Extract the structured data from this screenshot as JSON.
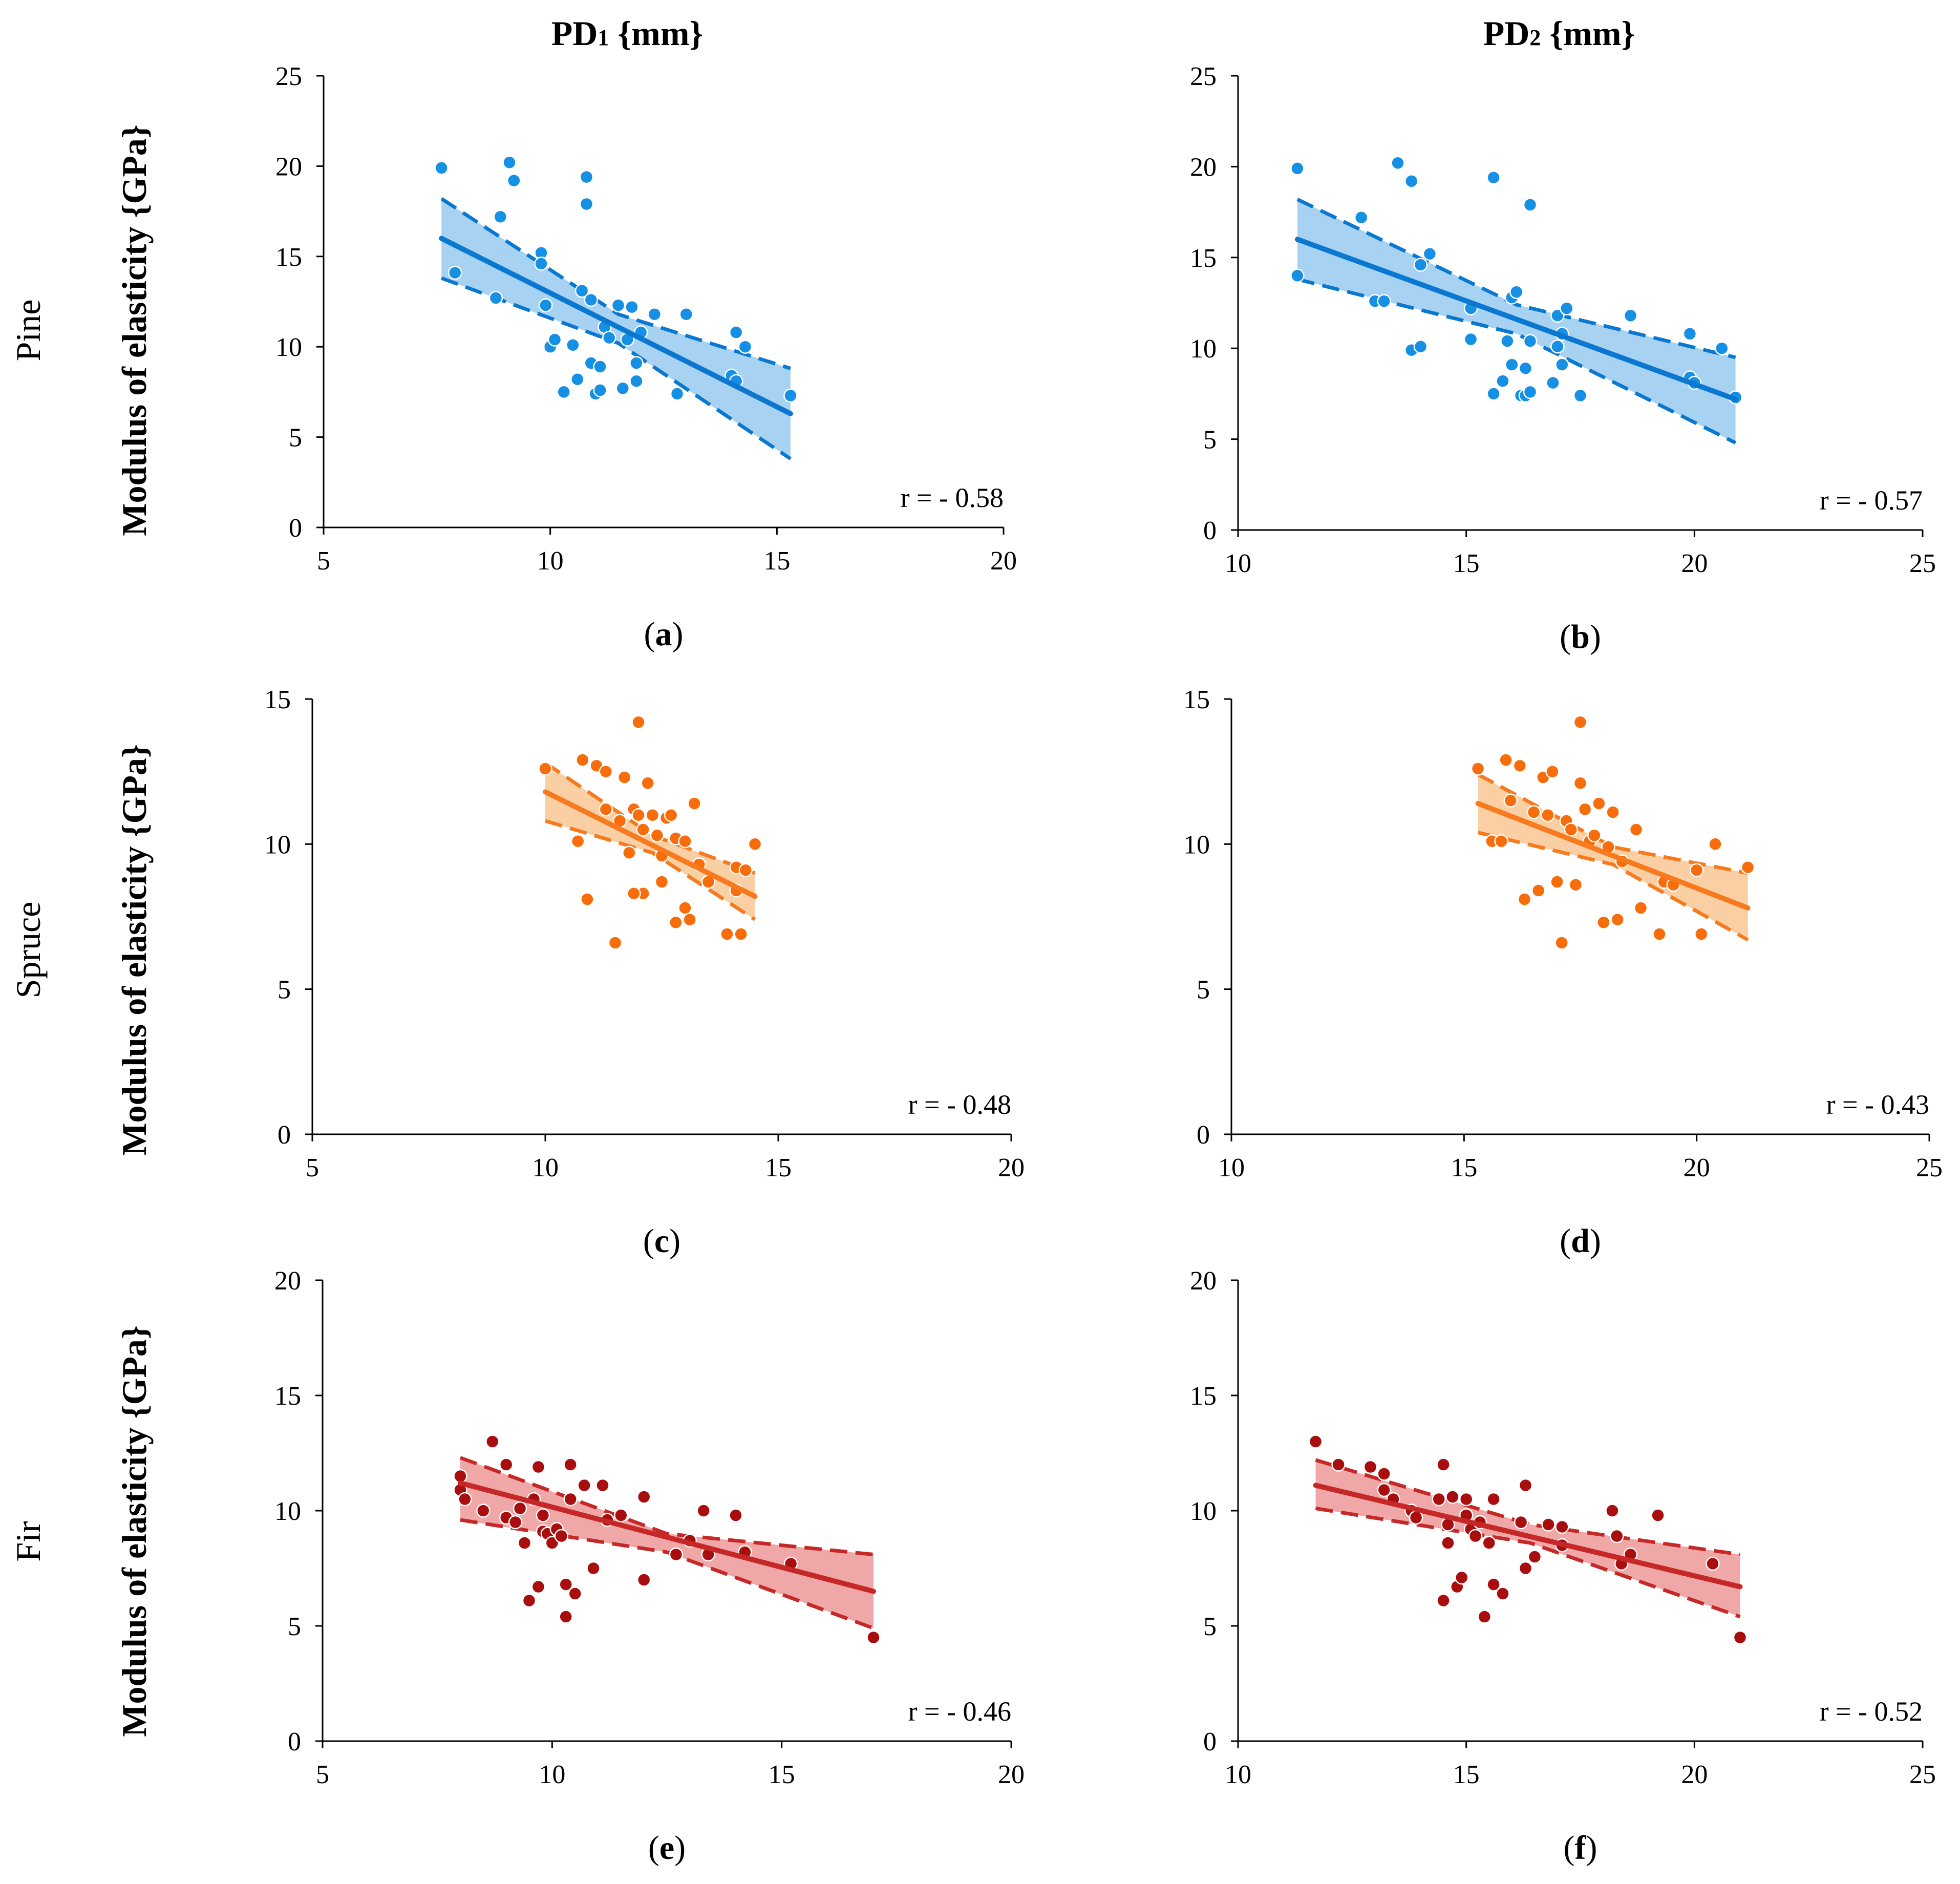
{
  "column_titles": [
    {
      "prefix": "PD",
      "sub": "1",
      "unit": " {mm}"
    },
    {
      "prefix": "PD",
      "sub": "2",
      "unit": " {mm}"
    }
  ],
  "row_labels": [
    "Pine",
    "Spruce",
    "Fir"
  ],
  "ylabel": "Modulus of elasticity {GPa}",
  "colors": {
    "pine": {
      "line": "#0a78d0",
      "point": "#1690e4",
      "fill": "#a8d2f2"
    },
    "spruce": {
      "line": "#f77a1f",
      "point": "#f76d0c",
      "fill": "#fbcfa4"
    },
    "fir": {
      "line": "#c62828",
      "point": "#a80e0e",
      "fill": "#efa7a7"
    }
  },
  "chart_data": [
    {
      "id": "a",
      "type": "scatter",
      "species": "pine",
      "letter": "a",
      "r_text": "r = - 0.58",
      "xlim": [
        5,
        20
      ],
      "ylim": [
        0,
        25
      ],
      "xticks": [
        5,
        10,
        15,
        20
      ],
      "yticks": [
        0,
        5,
        10,
        15,
        20,
        25
      ],
      "fit": {
        "x": [
          7.6,
          15.3
        ],
        "y": [
          16.0,
          6.3
        ]
      },
      "band_upper": {
        "x": [
          7.6,
          11.5,
          15.3
        ],
        "y": [
          18.2,
          11.8,
          8.8
        ]
      },
      "band_lower": {
        "x": [
          7.6,
          11.5,
          15.3
        ],
        "y": [
          13.8,
          10.2,
          3.8
        ]
      },
      "points": [
        [
          7.6,
          19.9
        ],
        [
          7.9,
          14.1
        ],
        [
          8.8,
          12.7
        ],
        [
          8.9,
          17.2
        ],
        [
          9.1,
          20.2
        ],
        [
          9.2,
          19.2
        ],
        [
          9.8,
          15.2
        ],
        [
          9.8,
          14.6
        ],
        [
          9.9,
          12.3
        ],
        [
          10.0,
          10.0
        ],
        [
          10.1,
          10.4
        ],
        [
          10.3,
          7.5
        ],
        [
          10.5,
          10.1
        ],
        [
          10.6,
          8.2
        ],
        [
          10.7,
          13.1
        ],
        [
          10.8,
          19.4
        ],
        [
          10.8,
          17.9
        ],
        [
          10.9,
          12.6
        ],
        [
          10.9,
          9.1
        ],
        [
          11.0,
          7.4
        ],
        [
          11.1,
          7.6
        ],
        [
          11.1,
          8.9
        ],
        [
          11.2,
          11.1
        ],
        [
          11.3,
          10.5
        ],
        [
          11.5,
          12.3
        ],
        [
          11.6,
          7.7
        ],
        [
          11.7,
          10.4
        ],
        [
          11.8,
          12.2
        ],
        [
          11.9,
          9.1
        ],
        [
          11.9,
          8.1
        ],
        [
          12.0,
          10.8
        ],
        [
          12.3,
          11.8
        ],
        [
          12.8,
          7.4
        ],
        [
          13.0,
          11.8
        ],
        [
          14.0,
          8.4
        ],
        [
          14.1,
          10.8
        ],
        [
          14.1,
          8.1
        ],
        [
          14.3,
          10.0
        ],
        [
          15.3,
          7.3
        ]
      ]
    },
    {
      "id": "b",
      "type": "scatter",
      "species": "pine",
      "letter": "b",
      "r_text": "r = - 0.57",
      "xlim": [
        10,
        25
      ],
      "ylim": [
        0,
        25
      ],
      "xticks": [
        10,
        15,
        20,
        25
      ],
      "yticks": [
        0,
        5,
        10,
        15,
        20,
        25
      ],
      "fit": {
        "x": [
          11.3,
          20.9
        ],
        "y": [
          16.0,
          7.2
        ]
      },
      "band_upper": {
        "x": [
          11.3,
          16.1,
          20.9
        ],
        "y": [
          18.2,
          12.4,
          9.5
        ]
      },
      "band_lower": {
        "x": [
          11.3,
          16.1,
          20.9
        ],
        "y": [
          13.8,
          10.8,
          4.8
        ]
      },
      "points": [
        [
          11.3,
          19.9
        ],
        [
          11.3,
          14.0
        ],
        [
          12.7,
          17.2
        ],
        [
          13.0,
          12.6
        ],
        [
          13.2,
          12.6
        ],
        [
          13.5,
          20.2
        ],
        [
          13.8,
          19.2
        ],
        [
          13.8,
          9.9
        ],
        [
          14.0,
          14.6
        ],
        [
          14.0,
          10.1
        ],
        [
          14.2,
          15.2
        ],
        [
          15.1,
          12.2
        ],
        [
          15.1,
          10.5
        ],
        [
          15.6,
          7.5
        ],
        [
          15.6,
          19.4
        ],
        [
          15.8,
          8.2
        ],
        [
          15.9,
          10.4
        ],
        [
          16.0,
          12.8
        ],
        [
          16.0,
          9.1
        ],
        [
          16.1,
          13.1
        ],
        [
          16.2,
          7.4
        ],
        [
          16.3,
          7.4
        ],
        [
          16.3,
          8.9
        ],
        [
          16.4,
          17.9
        ],
        [
          16.4,
          10.4
        ],
        [
          16.4,
          7.6
        ],
        [
          16.9,
          8.1
        ],
        [
          17.0,
          11.8
        ],
        [
          17.0,
          10.1
        ],
        [
          17.1,
          10.8
        ],
        [
          17.1,
          9.1
        ],
        [
          17.2,
          12.2
        ],
        [
          17.5,
          7.4
        ],
        [
          18.6,
          11.8
        ],
        [
          19.9,
          10.8
        ],
        [
          19.9,
          8.4
        ],
        [
          20.0,
          8.1
        ],
        [
          20.6,
          10.0
        ],
        [
          20.9,
          7.3
        ]
      ]
    },
    {
      "id": "c",
      "type": "scatter",
      "species": "spruce",
      "letter": "c",
      "r_text": "r = - 0.48",
      "xlim": [
        5,
        20
      ],
      "ylim": [
        0,
        15
      ],
      "xticks": [
        5,
        10,
        15,
        20
      ],
      "yticks": [
        0,
        5,
        10,
        15
      ],
      "fit": {
        "x": [
          10.0,
          14.5
        ],
        "y": [
          11.8,
          8.2
        ]
      },
      "band_upper": {
        "x": [
          10.0,
          12.3,
          14.5
        ],
        "y": [
          12.8,
          10.3,
          9.0
        ]
      },
      "band_lower": {
        "x": [
          10.0,
          12.3,
          14.5
        ],
        "y": [
          10.8,
          9.7,
          7.4
        ]
      },
      "points": [
        [
          10.0,
          12.6
        ],
        [
          10.7,
          10.1
        ],
        [
          10.8,
          12.9
        ],
        [
          10.9,
          8.1
        ],
        [
          11.1,
          12.7
        ],
        [
          11.3,
          12.5
        ],
        [
          11.3,
          11.2
        ],
        [
          11.5,
          6.6
        ],
        [
          11.6,
          10.8
        ],
        [
          11.7,
          12.3
        ],
        [
          11.8,
          9.7
        ],
        [
          11.9,
          11.2
        ],
        [
          12.0,
          14.2
        ],
        [
          12.0,
          11.0
        ],
        [
          12.1,
          10.5
        ],
        [
          12.1,
          8.3
        ],
        [
          12.2,
          12.1
        ],
        [
          12.3,
          11.0
        ],
        [
          12.4,
          10.3
        ],
        [
          12.5,
          9.6
        ],
        [
          12.6,
          10.9
        ],
        [
          12.7,
          11.0
        ],
        [
          12.8,
          10.2
        ],
        [
          12.8,
          7.3
        ],
        [
          13.0,
          10.1
        ],
        [
          13.0,
          7.8
        ],
        [
          13.1,
          7.4
        ],
        [
          13.2,
          11.4
        ],
        [
          13.3,
          9.3
        ],
        [
          13.5,
          8.7
        ],
        [
          13.9,
          6.9
        ],
        [
          14.1,
          9.2
        ],
        [
          14.1,
          8.4
        ],
        [
          14.2,
          6.9
        ],
        [
          14.3,
          9.1
        ],
        [
          14.5,
          10.0
        ],
        [
          12.5,
          8.7
        ],
        [
          11.9,
          8.3
        ]
      ]
    },
    {
      "id": "d",
      "type": "scatter",
      "species": "spruce",
      "letter": "d",
      "r_text": "r = - 0.43",
      "xlim": [
        10,
        25
      ],
      "ylim": [
        0,
        15
      ],
      "xticks": [
        10,
        15,
        20,
        25
      ],
      "yticks": [
        0,
        5,
        10,
        15
      ],
      "fit": {
        "x": [
          15.3,
          21.1
        ],
        "y": [
          11.4,
          7.8
        ]
      },
      "band_upper": {
        "x": [
          15.3,
          18.2,
          21.1
        ],
        "y": [
          12.4,
          9.9,
          9.0
        ]
      },
      "band_lower": {
        "x": [
          15.3,
          18.2,
          21.1
        ],
        "y": [
          10.4,
          9.3,
          6.7
        ]
      },
      "points": [
        [
          15.3,
          12.6
        ],
        [
          15.6,
          10.1
        ],
        [
          15.8,
          10.1
        ],
        [
          15.9,
          12.9
        ],
        [
          16.0,
          11.5
        ],
        [
          16.2,
          12.7
        ],
        [
          16.3,
          8.1
        ],
        [
          16.5,
          11.1
        ],
        [
          16.6,
          8.4
        ],
        [
          16.7,
          12.3
        ],
        [
          16.8,
          11.0
        ],
        [
          16.9,
          12.5
        ],
        [
          17.0,
          8.7
        ],
        [
          17.1,
          6.6
        ],
        [
          17.2,
          10.8
        ],
        [
          17.3,
          10.5
        ],
        [
          17.4,
          8.6
        ],
        [
          17.5,
          14.2
        ],
        [
          17.5,
          12.1
        ],
        [
          17.6,
          11.2
        ],
        [
          17.7,
          10.1
        ],
        [
          17.8,
          10.3
        ],
        [
          17.9,
          11.4
        ],
        [
          18.0,
          7.3
        ],
        [
          18.1,
          9.9
        ],
        [
          18.2,
          11.1
        ],
        [
          18.3,
          7.4
        ],
        [
          18.4,
          9.4
        ],
        [
          18.7,
          10.5
        ],
        [
          18.8,
          7.8
        ],
        [
          19.2,
          6.9
        ],
        [
          19.3,
          8.7
        ],
        [
          19.5,
          8.6
        ],
        [
          20.0,
          9.1
        ],
        [
          20.1,
          6.9
        ],
        [
          20.4,
          10.0
        ],
        [
          21.1,
          9.2
        ]
      ]
    },
    {
      "id": "e",
      "type": "scatter",
      "species": "fir",
      "letter": "e",
      "r_text": "r = - 0.46",
      "xlim": [
        5,
        20
      ],
      "ylim": [
        0,
        20
      ],
      "xticks": [
        5,
        10,
        15,
        20
      ],
      "yticks": [
        0,
        5,
        10,
        15,
        20
      ],
      "fit": {
        "x": [
          8.0,
          17.0
        ],
        "y": [
          11.2,
          6.5
        ]
      },
      "band_upper": {
        "x": [
          8.0,
          12.5,
          17.0
        ],
        "y": [
          12.3,
          9.0,
          8.1
        ]
      },
      "band_lower": {
        "x": [
          8.0,
          12.5,
          17.0
        ],
        "y": [
          9.6,
          8.2,
          4.9
        ]
      },
      "points": [
        [
          8.0,
          11.5
        ],
        [
          8.0,
          10.9
        ],
        [
          8.1,
          10.5
        ],
        [
          8.5,
          10.0
        ],
        [
          8.7,
          13.0
        ],
        [
          9.0,
          12.0
        ],
        [
          9.0,
          9.7
        ],
        [
          9.2,
          9.5
        ],
        [
          9.3,
          10.1
        ],
        [
          9.4,
          8.6
        ],
        [
          9.5,
          6.1
        ],
        [
          9.6,
          10.5
        ],
        [
          9.7,
          6.7
        ],
        [
          9.7,
          11.9
        ],
        [
          9.8,
          9.1
        ],
        [
          9.8,
          9.8
        ],
        [
          9.9,
          9.0
        ],
        [
          10.0,
          8.6
        ],
        [
          10.1,
          9.2
        ],
        [
          10.2,
          8.9
        ],
        [
          10.3,
          6.8
        ],
        [
          10.3,
          5.4
        ],
        [
          10.4,
          12.0
        ],
        [
          10.4,
          10.5
        ],
        [
          10.5,
          6.4
        ],
        [
          10.7,
          11.1
        ],
        [
          10.9,
          7.5
        ],
        [
          11.1,
          11.1
        ],
        [
          11.2,
          9.6
        ],
        [
          11.5,
          9.8
        ],
        [
          12.0,
          7.0
        ],
        [
          12.0,
          10.6
        ],
        [
          12.7,
          8.1
        ],
        [
          13.0,
          8.7
        ],
        [
          13.3,
          10.0
        ],
        [
          13.4,
          8.1
        ],
        [
          14.0,
          9.8
        ],
        [
          14.2,
          8.2
        ],
        [
          15.2,
          7.7
        ],
        [
          17.0,
          4.5
        ]
      ]
    },
    {
      "id": "f",
      "type": "scatter",
      "species": "fir",
      "letter": "f",
      "r_text": "r = - 0.52",
      "xlim": [
        10,
        25
      ],
      "ylim": [
        0,
        20
      ],
      "xticks": [
        10,
        15,
        20,
        25
      ],
      "yticks": [
        0,
        5,
        10,
        15,
        20
      ],
      "fit": {
        "x": [
          11.7,
          21.0
        ],
        "y": [
          11.1,
          6.7
        ]
      },
      "band_upper": {
        "x": [
          11.7,
          16.4,
          21.0
        ],
        "y": [
          12.2,
          9.4,
          8.1
        ]
      },
      "band_lower": {
        "x": [
          11.7,
          16.4,
          21.0
        ],
        "y": [
          10.1,
          8.6,
          5.4
        ]
      },
      "points": [
        [
          11.7,
          13.0
        ],
        [
          12.2,
          12.0
        ],
        [
          12.9,
          11.9
        ],
        [
          13.2,
          11.6
        ],
        [
          13.2,
          10.9
        ],
        [
          13.4,
          10.5
        ],
        [
          13.8,
          10.0
        ],
        [
          13.9,
          9.7
        ],
        [
          14.4,
          10.5
        ],
        [
          14.5,
          12.0
        ],
        [
          14.5,
          6.1
        ],
        [
          14.6,
          9.4
        ],
        [
          14.6,
          8.6
        ],
        [
          14.7,
          10.6
        ],
        [
          14.8,
          6.7
        ],
        [
          14.9,
          7.1
        ],
        [
          15.0,
          10.5
        ],
        [
          15.0,
          9.8
        ],
        [
          15.1,
          9.2
        ],
        [
          15.2,
          8.9
        ],
        [
          15.3,
          9.5
        ],
        [
          15.4,
          5.4
        ],
        [
          15.5,
          8.6
        ],
        [
          15.6,
          10.5
        ],
        [
          15.6,
          6.8
        ],
        [
          15.8,
          6.4
        ],
        [
          16.2,
          9.5
        ],
        [
          16.3,
          11.1
        ],
        [
          16.3,
          7.5
        ],
        [
          16.5,
          8.0
        ],
        [
          16.8,
          9.4
        ],
        [
          17.1,
          9.3
        ],
        [
          17.1,
          8.5
        ],
        [
          18.2,
          10.0
        ],
        [
          18.3,
          8.9
        ],
        [
          18.4,
          7.7
        ],
        [
          18.6,
          8.1
        ],
        [
          19.2,
          9.8
        ],
        [
          20.4,
          7.7
        ],
        [
          21.0,
          4.5
        ]
      ]
    }
  ]
}
